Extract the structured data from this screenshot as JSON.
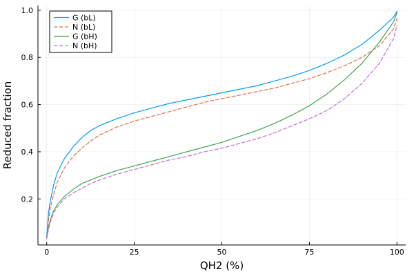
{
  "chart_data": {
    "type": "line",
    "title": "",
    "xlabel": "QH2 (%)",
    "ylabel": "Reduced fraction",
    "xlim": [
      -2.5,
      102.5
    ],
    "ylim": [
      0.005,
      1.02
    ],
    "xticks": [
      0,
      25,
      50,
      75,
      100
    ],
    "xtick_labels": [
      "0",
      "25",
      "50",
      "75",
      "100"
    ],
    "yticks": [
      0.2,
      0.4,
      0.6,
      0.8,
      1.0
    ],
    "ytick_labels": [
      "0.2",
      "0.4",
      "0.6",
      "0.8",
      "1.0"
    ],
    "grid": true,
    "legend_position": "top-left",
    "series": [
      {
        "name": "G (bL)",
        "color": "#009AFA",
        "dash": "solid",
        "x": [
          0,
          0.5,
          1,
          2,
          3,
          5,
          7.5,
          10,
          12.5,
          15,
          20,
          25,
          30,
          35,
          40,
          45,
          50,
          55,
          60,
          65,
          70,
          75,
          80,
          85,
          90,
          95,
          99,
          100
        ],
        "y": [
          0.04,
          0.14,
          0.19,
          0.26,
          0.31,
          0.37,
          0.42,
          0.46,
          0.49,
          0.51,
          0.54,
          0.565,
          0.585,
          0.605,
          0.62,
          0.635,
          0.65,
          0.665,
          0.68,
          0.7,
          0.72,
          0.745,
          0.775,
          0.81,
          0.855,
          0.915,
          0.97,
          0.995
        ]
      },
      {
        "name": "N (bL)",
        "color": "#E36F47",
        "dash": "dashed",
        "x": [
          0,
          0.5,
          1,
          2,
          3,
          5,
          7.5,
          10,
          12.5,
          15,
          20,
          25,
          30,
          35,
          40,
          45,
          50,
          55,
          60,
          65,
          70,
          75,
          80,
          85,
          90,
          95,
          99,
          100
        ],
        "y": [
          0.035,
          0.11,
          0.16,
          0.22,
          0.27,
          0.33,
          0.38,
          0.415,
          0.445,
          0.47,
          0.505,
          0.53,
          0.55,
          0.57,
          0.59,
          0.61,
          0.625,
          0.64,
          0.655,
          0.67,
          0.69,
          0.71,
          0.735,
          0.765,
          0.8,
          0.85,
          0.92,
          0.965
        ]
      },
      {
        "name": "G (bH)",
        "color": "#3EA44E",
        "dash": "solid",
        "x": [
          0,
          0.5,
          1,
          2,
          3,
          5,
          7.5,
          10,
          12.5,
          15,
          20,
          25,
          30,
          35,
          40,
          45,
          50,
          55,
          60,
          65,
          70,
          75,
          80,
          85,
          90,
          95,
          99,
          100
        ],
        "y": [
          0.035,
          0.08,
          0.11,
          0.15,
          0.175,
          0.21,
          0.24,
          0.265,
          0.28,
          0.295,
          0.32,
          0.34,
          0.36,
          0.38,
          0.4,
          0.42,
          0.44,
          0.465,
          0.49,
          0.52,
          0.555,
          0.595,
          0.645,
          0.705,
          0.775,
          0.865,
          0.95,
          0.99
        ]
      },
      {
        "name": "N (bH)",
        "color": "#C271D2",
        "dash": "dashed",
        "x": [
          0,
          0.5,
          1,
          2,
          3,
          5,
          7.5,
          10,
          12.5,
          15,
          20,
          25,
          30,
          35,
          40,
          45,
          50,
          55,
          60,
          65,
          70,
          75,
          80,
          85,
          90,
          95,
          99,
          100
        ],
        "y": [
          0.03,
          0.07,
          0.1,
          0.14,
          0.165,
          0.2,
          0.225,
          0.245,
          0.265,
          0.28,
          0.305,
          0.325,
          0.345,
          0.365,
          0.38,
          0.4,
          0.415,
          0.435,
          0.455,
          0.48,
          0.51,
          0.54,
          0.575,
          0.625,
          0.69,
          0.775,
          0.88,
          0.935
        ]
      }
    ]
  }
}
